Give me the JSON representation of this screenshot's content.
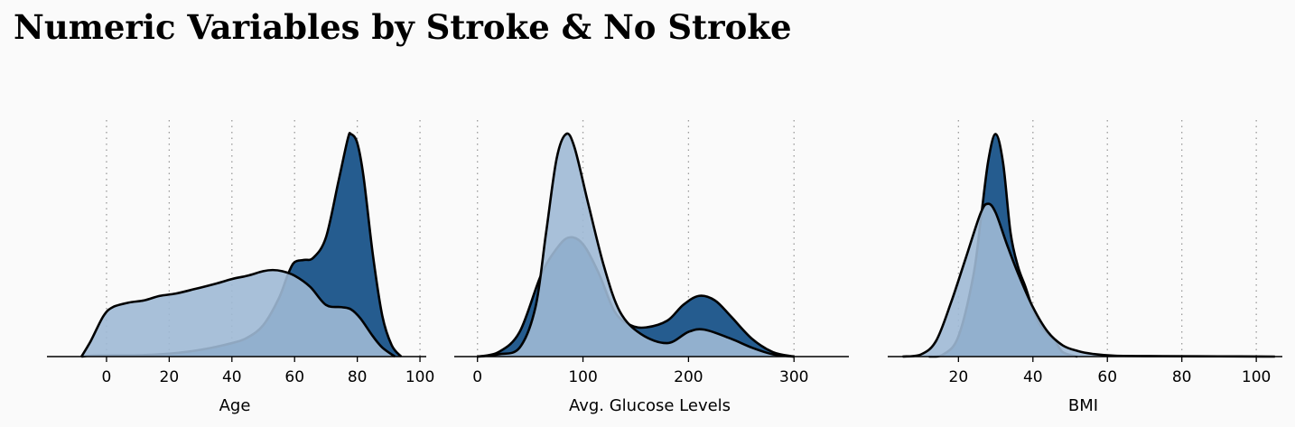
{
  "title": "Numeric Variables by Stroke & No Stroke",
  "colors": {
    "background": "#fafafa",
    "stroke_fill": "#255c8f",
    "no_stroke_fill": "#9fb9d5",
    "outline": "#000000",
    "grid": "#9a9a9a"
  },
  "chart_data": [
    {
      "type": "area",
      "xlabel": "Age",
      "xticks": [
        0,
        20,
        40,
        60,
        80,
        100
      ],
      "xlim": [
        -19,
        102
      ],
      "grid": "vertical dotted",
      "series": [
        {
          "role": "stroke",
          "color": "#255c8f",
          "points": [
            [
              -8,
              0
            ],
            [
              -5,
              0.004
            ],
            [
              0,
              0.005
            ],
            [
              10,
              0.006
            ],
            [
              20,
              0.013
            ],
            [
              30,
              0.03
            ],
            [
              40,
              0.06
            ],
            [
              45,
              0.085
            ],
            [
              50,
              0.14
            ],
            [
              55,
              0.26
            ],
            [
              58,
              0.37
            ],
            [
              60,
              0.42
            ],
            [
              63,
              0.43
            ],
            [
              66,
              0.44
            ],
            [
              70,
              0.53
            ],
            [
              74,
              0.78
            ],
            [
              77,
              0.97
            ],
            [
              78,
              0.99
            ],
            [
              80,
              0.95
            ],
            [
              82,
              0.8
            ],
            [
              85,
              0.45
            ],
            [
              88,
              0.18
            ],
            [
              91,
              0.05
            ],
            [
              94,
              0.0
            ]
          ]
        },
        {
          "role": "no_stroke",
          "color": "#9fb9d5",
          "points": [
            [
              -8,
              0
            ],
            [
              -5,
              0.07
            ],
            [
              -1,
              0.18
            ],
            [
              2,
              0.22
            ],
            [
              7,
              0.24
            ],
            [
              12,
              0.25
            ],
            [
              17,
              0.27
            ],
            [
              22,
              0.28
            ],
            [
              28,
              0.3
            ],
            [
              35,
              0.325
            ],
            [
              40,
              0.345
            ],
            [
              45,
              0.36
            ],
            [
              50,
              0.38
            ],
            [
              53,
              0.385
            ],
            [
              56,
              0.38
            ],
            [
              60,
              0.36
            ],
            [
              65,
              0.31
            ],
            [
              70,
              0.23
            ],
            [
              75,
              0.22
            ],
            [
              78,
              0.21
            ],
            [
              81,
              0.17
            ],
            [
              85,
              0.09
            ],
            [
              88,
              0.04
            ],
            [
              92,
              0.0
            ]
          ]
        }
      ]
    },
    {
      "type": "area",
      "xlabel": "Avg. Glucose Levels",
      "xticks": [
        0,
        100,
        200,
        300
      ],
      "xlim": [
        -22,
        352
      ],
      "grid": "vertical dotted",
      "series": [
        {
          "role": "stroke",
          "color": "#255c8f",
          "points": [
            [
              0,
              0
            ],
            [
              20,
              0.02
            ],
            [
              40,
              0.11
            ],
            [
              60,
              0.36
            ],
            [
              75,
              0.48
            ],
            [
              87,
              0.53
            ],
            [
              100,
              0.5
            ],
            [
              115,
              0.37
            ],
            [
              130,
              0.2
            ],
            [
              145,
              0.14
            ],
            [
              160,
              0.13
            ],
            [
              180,
              0.16
            ],
            [
              195,
              0.23
            ],
            [
              210,
              0.27
            ],
            [
              225,
              0.25
            ],
            [
              240,
              0.18
            ],
            [
              260,
              0.08
            ],
            [
              280,
              0.02
            ],
            [
              300,
              0.0
            ]
          ]
        },
        {
          "role": "no_stroke",
          "color": "#9fb9d5",
          "points": [
            [
              0,
              0
            ],
            [
              20,
              0.01
            ],
            [
              40,
              0.04
            ],
            [
              55,
              0.22
            ],
            [
              65,
              0.55
            ],
            [
              75,
              0.88
            ],
            [
              84,
              0.99
            ],
            [
              92,
              0.93
            ],
            [
              105,
              0.68
            ],
            [
              120,
              0.4
            ],
            [
              135,
              0.2
            ],
            [
              155,
              0.1
            ],
            [
              180,
              0.06
            ],
            [
              200,
              0.11
            ],
            [
              215,
              0.12
            ],
            [
              240,
              0.08
            ],
            [
              260,
              0.04
            ],
            [
              280,
              0.01
            ],
            [
              300,
              0.0
            ]
          ]
        }
      ]
    },
    {
      "type": "area",
      "xlabel": "BMI",
      "xticks": [
        20,
        40,
        60,
        80,
        100
      ],
      "xlim": [
        1,
        107
      ],
      "grid": "vertical dotted",
      "series": [
        {
          "role": "stroke",
          "color": "#255c8f",
          "points": [
            [
              12,
              0
            ],
            [
              16,
              0.01
            ],
            [
              20,
              0.09
            ],
            [
              24,
              0.36
            ],
            [
              26,
              0.61
            ],
            [
              28,
              0.87
            ],
            [
              30,
              0.99
            ],
            [
              32,
              0.86
            ],
            [
              34,
              0.55
            ],
            [
              36,
              0.4
            ],
            [
              38,
              0.31
            ],
            [
              40,
              0.21
            ],
            [
              42,
              0.14
            ],
            [
              44,
              0.1
            ],
            [
              46,
              0.07
            ],
            [
              48,
              0.02
            ],
            [
              52,
              0.0
            ]
          ]
        },
        {
          "role": "no_stroke",
          "color": "#9fb9d5",
          "points": [
            [
              5,
              0
            ],
            [
              10,
              0.01
            ],
            [
              14,
              0.07
            ],
            [
              18,
              0.24
            ],
            [
              22,
              0.44
            ],
            [
              26,
              0.64
            ],
            [
              28,
              0.68
            ],
            [
              30,
              0.64
            ],
            [
              33,
              0.5
            ],
            [
              36,
              0.37
            ],
            [
              40,
              0.22
            ],
            [
              44,
              0.11
            ],
            [
              48,
              0.05
            ],
            [
              52,
              0.025
            ],
            [
              56,
              0.012
            ],
            [
              62,
              0.004
            ],
            [
              75,
              0.002
            ],
            [
              90,
              0.001
            ],
            [
              105,
              0.0
            ]
          ]
        }
      ]
    }
  ]
}
